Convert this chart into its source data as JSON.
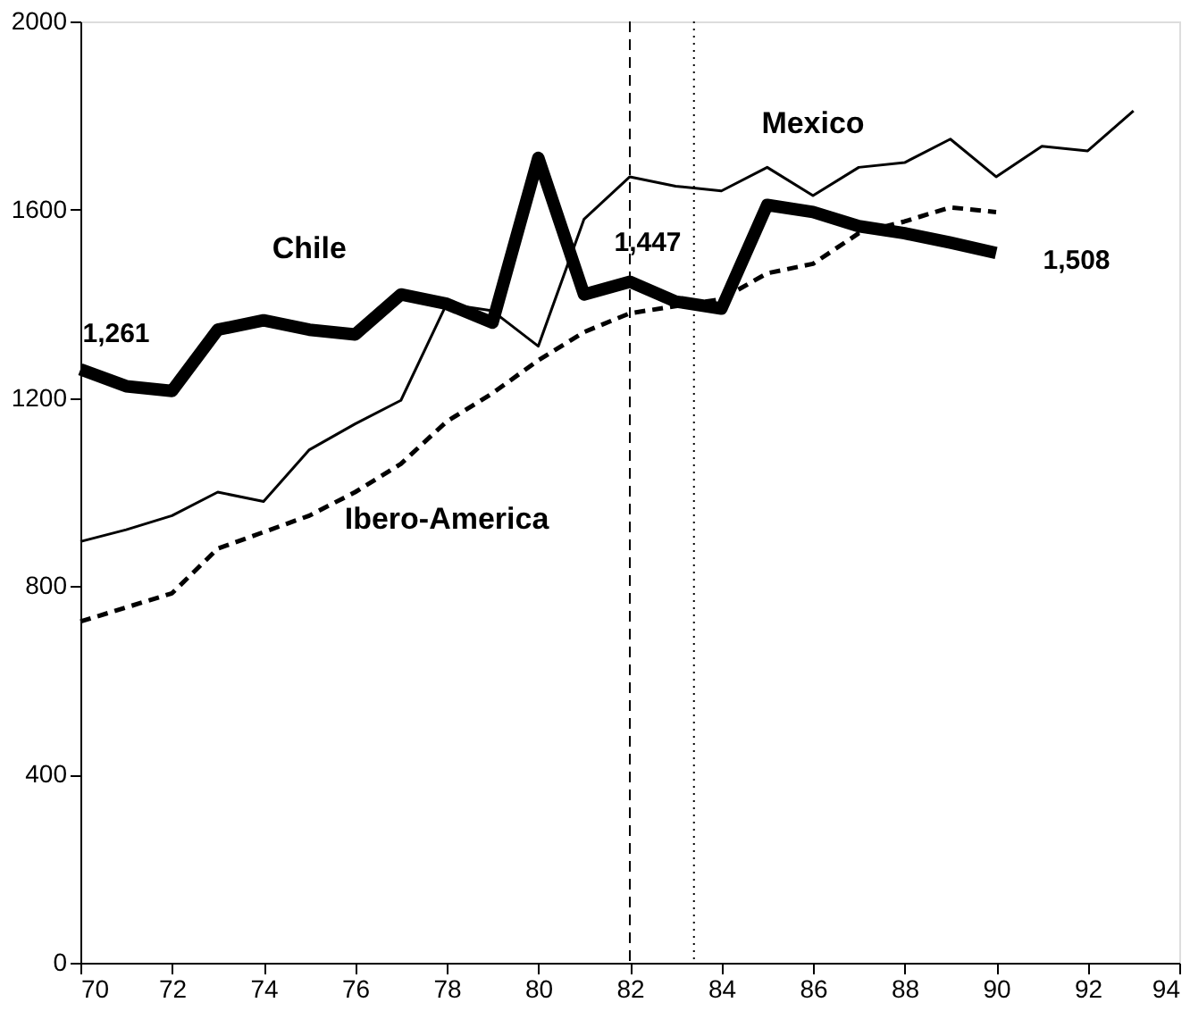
{
  "chart_data": {
    "type": "line",
    "xlim": [
      70,
      94
    ],
    "xticks": [
      70,
      72,
      74,
      76,
      78,
      80,
      82,
      84,
      86,
      88,
      90,
      92,
      94
    ],
    "ylim": [
      0,
      2000
    ],
    "yticks": [
      0,
      400,
      800,
      1200,
      1600,
      2000
    ],
    "grid": false,
    "legend": false,
    "marker": "none",
    "series": [
      {
        "name": "Chile",
        "color": "#000000",
        "line_style": "solid",
        "x": [
          70,
          71,
          72,
          73,
          74,
          75,
          76,
          77,
          78,
          79,
          80,
          81,
          82,
          83,
          84,
          85,
          86,
          87,
          88,
          89,
          90
        ],
        "values": [
          1261,
          1225,
          1215,
          1345,
          1365,
          1345,
          1335,
          1420,
          1400,
          1360,
          1710,
          1420,
          1447,
          1405,
          1390,
          1610,
          1595,
          1565,
          1550,
          1530,
          1508
        ]
      },
      {
        "name": "Mexico",
        "color": "#000000",
        "line_style": "solid",
        "x": [
          70,
          71,
          72,
          73,
          74,
          75,
          76,
          77,
          78,
          79,
          80,
          81,
          82,
          83,
          84,
          85,
          86,
          87,
          88,
          89,
          90,
          91,
          92,
          93
        ],
        "values": [
          895,
          920,
          950,
          1000,
          980,
          1090,
          1145,
          1195,
          1400,
          1385,
          1310,
          1580,
          1670,
          1650,
          1640,
          1690,
          1630,
          1690,
          1700,
          1750,
          1670,
          1735,
          1725,
          1810
        ]
      },
      {
        "name": "Ibero-America",
        "color": "#000000",
        "line_style": "dashed",
        "x": [
          70,
          71,
          72,
          73,
          74,
          75,
          76,
          77,
          78,
          79,
          80,
          81,
          82,
          83,
          84,
          85,
          86,
          87,
          88,
          89,
          90
        ],
        "values": [
          725,
          755,
          785,
          880,
          915,
          950,
          1000,
          1060,
          1150,
          1210,
          1280,
          1340,
          1380,
          1395,
          1410,
          1465,
          1485,
          1550,
          1575,
          1605,
          1595
        ]
      }
    ],
    "annotations": [
      {
        "text": "1,261",
        "x": 70,
        "y": 1261
      },
      {
        "text": "1,447",
        "x": 82,
        "y": 1447
      },
      {
        "text": "1,508",
        "x": 90,
        "y": 1508
      }
    ],
    "ref_lines": [
      {
        "axis": "x",
        "value": 82,
        "line_style": "dashed"
      },
      {
        "axis": "x",
        "value": 83.4,
        "line_style": "dotted"
      }
    ]
  }
}
